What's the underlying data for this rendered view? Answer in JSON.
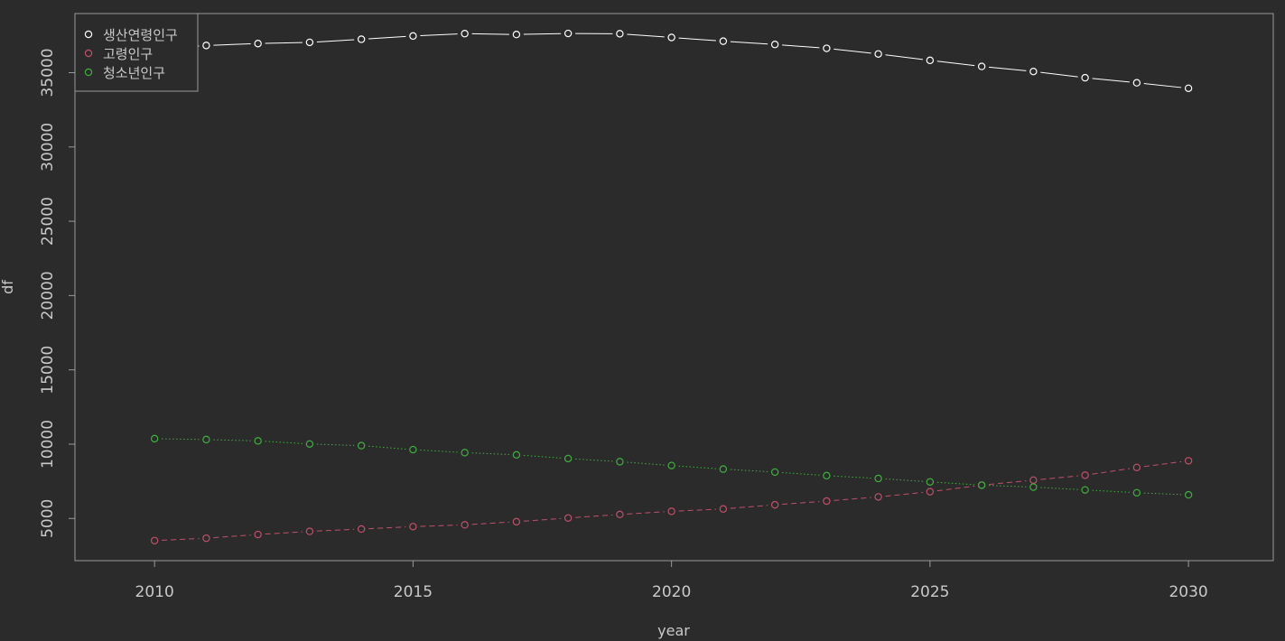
{
  "chart_data": {
    "type": "line",
    "xlabel": "year",
    "ylabel": "df",
    "x": [
      2010,
      2011,
      2012,
      2013,
      2014,
      2015,
      2016,
      2017,
      2018,
      2019,
      2020,
      2021,
      2022,
      2023,
      2024,
      2025,
      2026,
      2027,
      2028,
      2029,
      2030
    ],
    "xlim": [
      2008.46,
      2031.64
    ],
    "ylim": [
      2160,
      38980
    ],
    "x_ticks": [
      "2010",
      "2015",
      "2020",
      "2025",
      "2030"
    ],
    "y_ticks": [
      "5000",
      "10000",
      "15000",
      "20000",
      "25000",
      "30000",
      "35000"
    ],
    "legend_position": "top-left",
    "series": [
      {
        "name": "생산연령인구",
        "color": "#ffffff",
        "line_style": "solid",
        "values": [
          36580,
          36830,
          36960,
          37040,
          37250,
          37470,
          37630,
          37570,
          37640,
          37620,
          37370,
          37120,
          36900,
          36640,
          36260,
          35830,
          35420,
          35080,
          34660,
          34320,
          33950
        ]
      },
      {
        "name": "고령인구",
        "color": "#c0506a",
        "line_style": "dashed",
        "values": [
          3510,
          3670,
          3920,
          4130,
          4290,
          4450,
          4570,
          4780,
          5030,
          5270,
          5480,
          5640,
          5920,
          6170,
          6450,
          6800,
          7240,
          7580,
          7910,
          8430,
          8880
        ]
      },
      {
        "name": "청소년인구",
        "color": "#3fb03f",
        "line_style": "dotted",
        "values": [
          10370,
          10310,
          10220,
          10010,
          9900,
          9630,
          9430,
          9280,
          9030,
          8820,
          8560,
          8320,
          8120,
          7880,
          7690,
          7460,
          7240,
          7110,
          6920,
          6730,
          6590
        ]
      }
    ]
  }
}
